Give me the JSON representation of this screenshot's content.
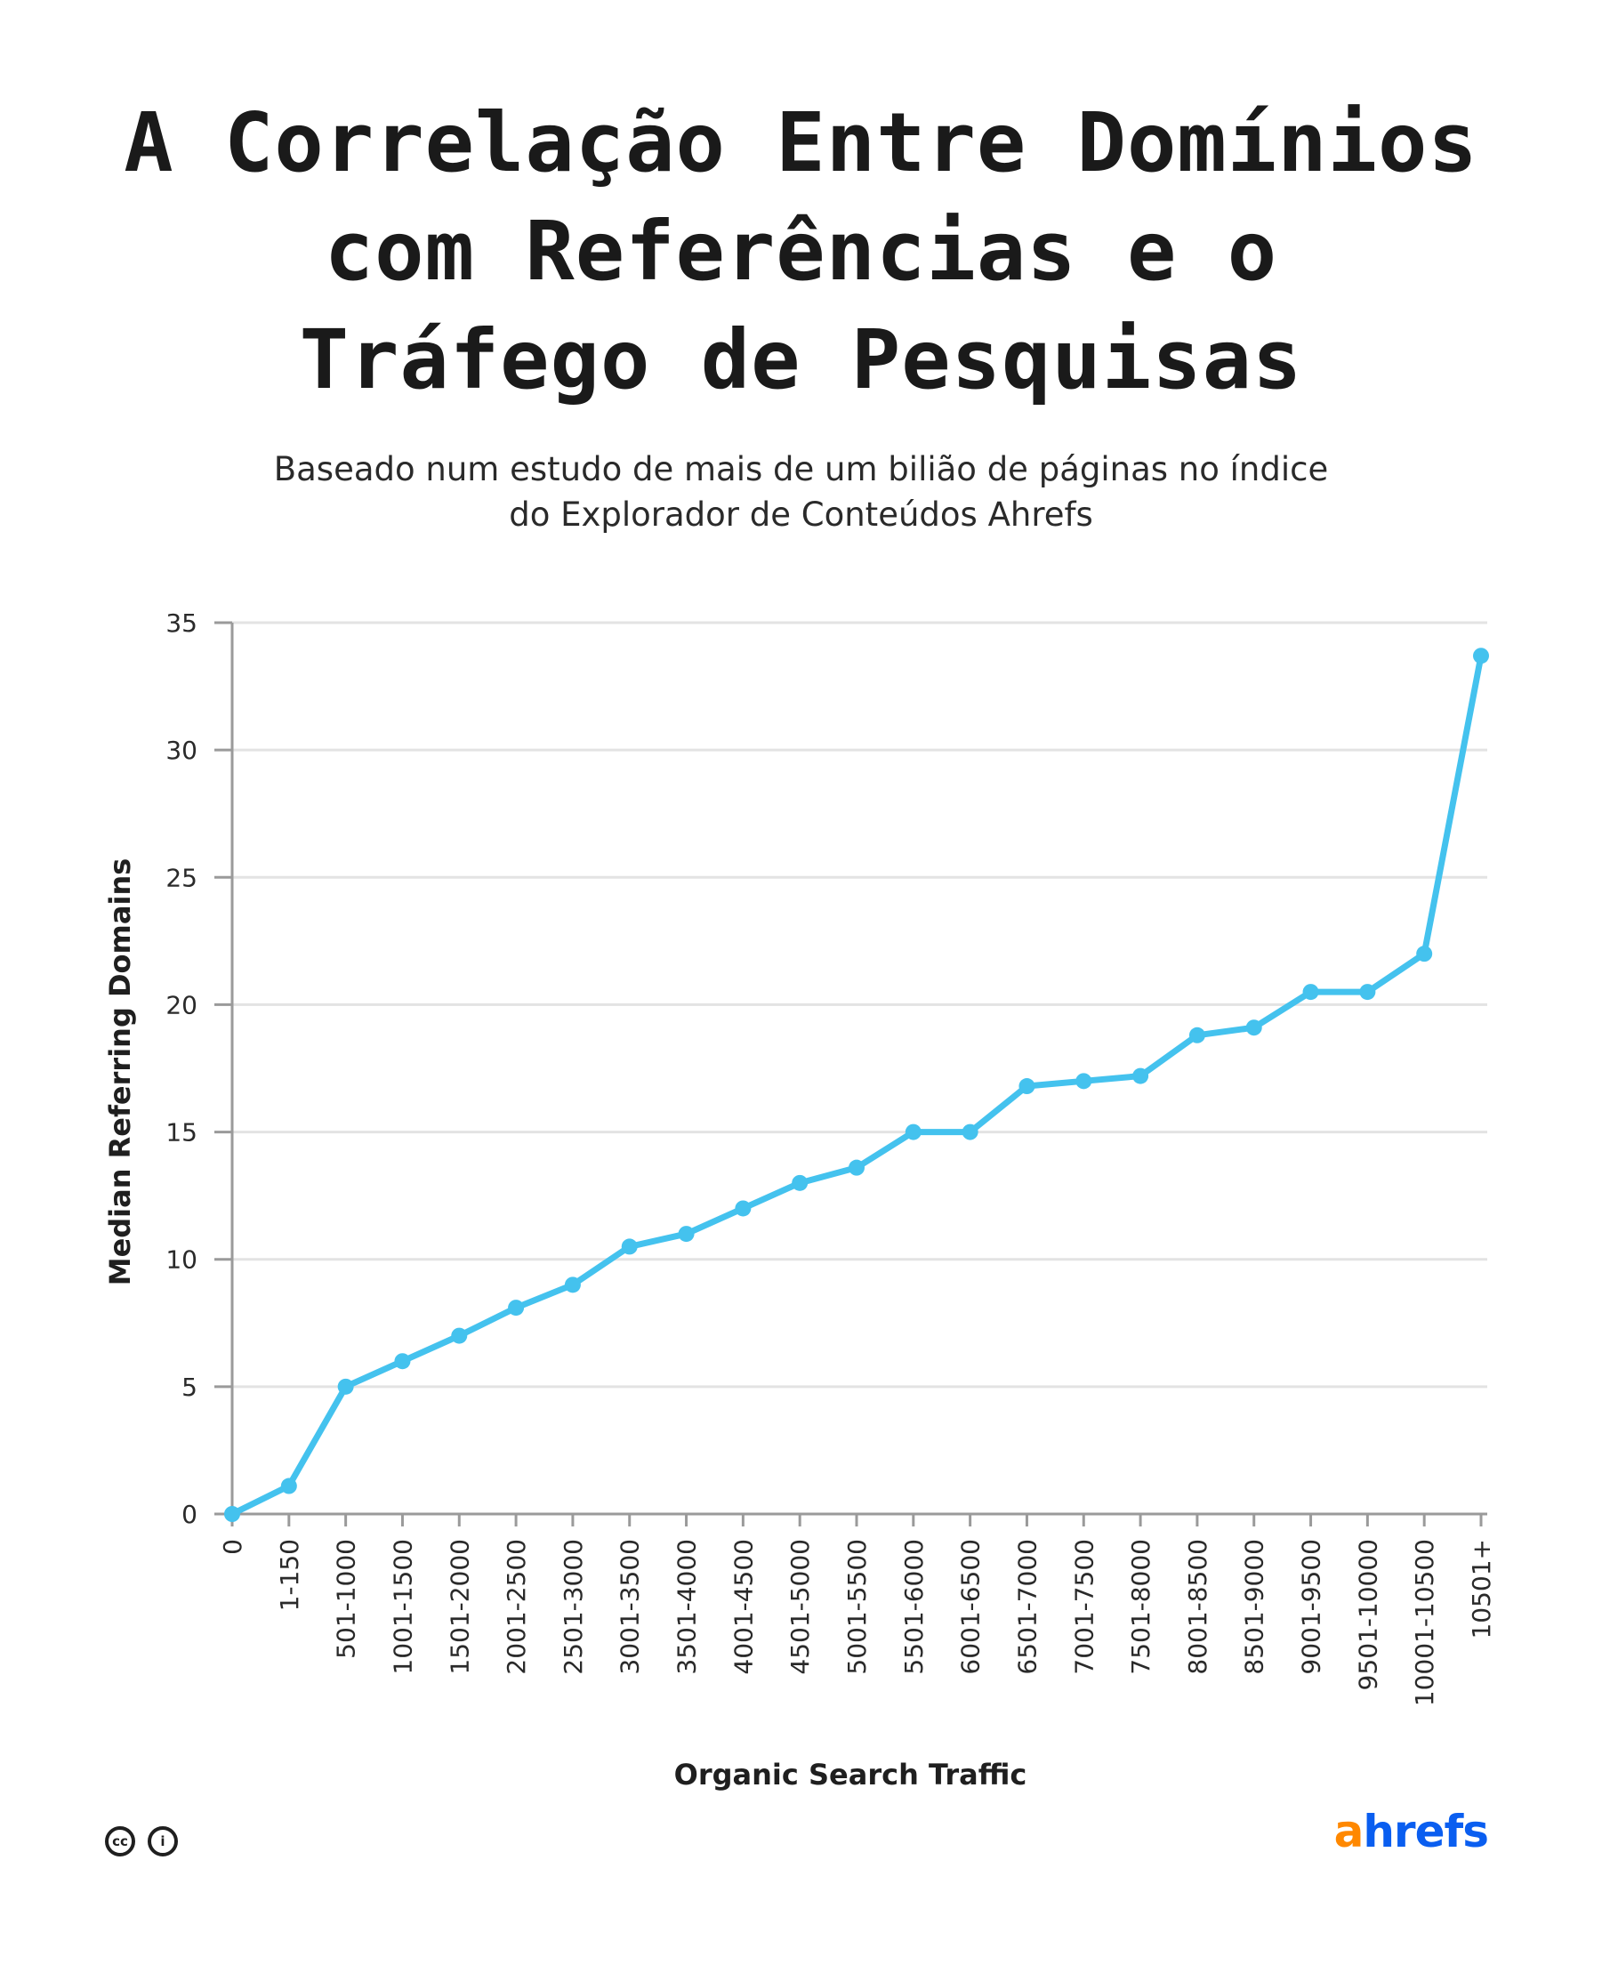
{
  "title_lines": [
    "A Correlação Entre Domínios",
    "com Referências e o",
    "Tráfego de Pesquisas"
  ],
  "subtitle_lines": [
    "Baseado num estudo de mais de um bilião de páginas no índice",
    "do Explorador de Conteúdos Ahrefs"
  ],
  "footer": {
    "license_icon_1": "cc",
    "license_icon_2": "i",
    "logo_first": "a",
    "logo_rest": "hrefs"
  },
  "colors": {
    "line": "#44c2ee",
    "grid": "#e3e3e3",
    "axis": "#9a9a9a",
    "logo_orange": "#ff8800",
    "logo_blue": "#0a5ef0"
  },
  "chart_data": {
    "type": "line",
    "title": "A Correlação Entre Domínios com Referências e o Tráfego de Pesquisas",
    "xlabel": "Organic Search Traffic",
    "ylabel": "Median Referring Domains",
    "ylim": [
      0,
      35
    ],
    "yticks": [
      0,
      5,
      10,
      15,
      20,
      25,
      30,
      35
    ],
    "grid": true,
    "categories": [
      "0",
      "1-150",
      "501-1000",
      "1001-1500",
      "1501-2000",
      "2001-2500",
      "2501-3000",
      "3001-3500",
      "3501-4000",
      "4001-4500",
      "4501-5000",
      "5001-5500",
      "5501-6000",
      "6001-6500",
      "6501-7000",
      "7001-7500",
      "7501-8000",
      "8001-8500",
      "8501-9000",
      "9001-9500",
      "9501-10000",
      "10001-10500",
      "10501+"
    ],
    "series": [
      {
        "values": [
          0,
          1.1,
          5,
          6,
          7,
          8.1,
          9,
          10.5,
          11,
          12,
          13,
          13.6,
          15,
          15,
          16.8,
          17,
          17.2,
          18.8,
          19.1,
          20.5,
          20.5,
          22,
          33.7
        ]
      }
    ]
  }
}
